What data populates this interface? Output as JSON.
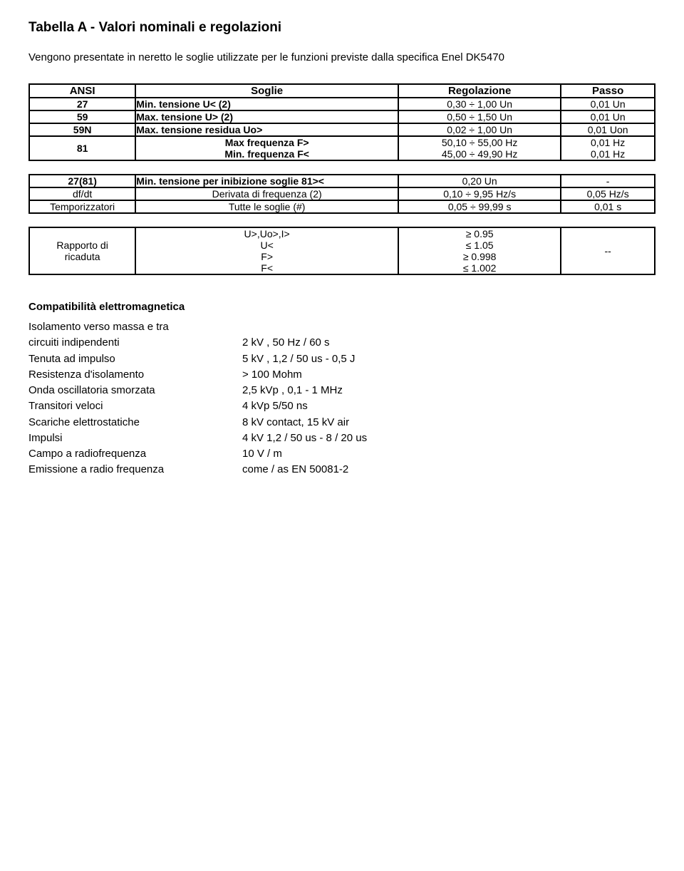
{
  "title": "Tabella A - Valori nominali e regolazioni",
  "intro": "Vengono presentate in neretto le soglie utilizzate per le funzioni previste dalla specifica Enel DK5470",
  "headers": {
    "ansi": "ANSI",
    "soglie": "Soglie",
    "regolazione": "Regolazione",
    "passo": "Passo"
  },
  "tableA": [
    {
      "ansi": "27",
      "soglie": "Min. tensione U<  (2)",
      "reg": "0,30 ÷ 1,00 Un",
      "passo": "0,01 Un"
    },
    {
      "ansi": "59",
      "soglie": "Max. tensione U>  (2)",
      "reg": "0,50 ÷ 1,50 Un",
      "passo": "0,01 Un"
    },
    {
      "ansi": "59N",
      "soglie": "Max. tensione residua Uo>",
      "reg": "0,02 ÷ 1,00 Un",
      "passo": "0,01 Uon"
    }
  ],
  "row81": {
    "ansi": "81",
    "soglie_l1": "Max frequenza F>",
    "soglie_l2": "Min. frequenza F<",
    "reg_l1": "50,10 ÷ 55,00 Hz",
    "reg_l2": "45,00 ÷ 49,90 Hz",
    "passo_l1": "0,01 Hz",
    "passo_l2": "0,01 Hz"
  },
  "tableB": [
    {
      "ansi": "27(81)",
      "soglie": "Min. tensione per inibizione soglie 81><",
      "reg": "0,20 Un",
      "passo": "-"
    },
    {
      "ansi": "df/dt",
      "soglie": "Derivata di frequenza (2)",
      "reg": "0,10 ÷ 9,95 Hz/s",
      "passo": "0,05 Hz/s"
    },
    {
      "ansi": "Temporizzatori",
      "soglie": "Tutte le soglie (#)",
      "reg": "0,05 ÷ 99,99 s",
      "passo": "0,01 s"
    }
  ],
  "ratio": {
    "ansi_l1": "Rapporto di",
    "ansi_l2": "ricaduta",
    "soglie_l1": "U>,Uo>,I>",
    "soglie_l2": "U<",
    "soglie_l3": "F>",
    "soglie_l4": "F<",
    "reg_l1": "≥ 0.95",
    "reg_l2": "≤ 1.05",
    "reg_l3": "≥ 0.998",
    "reg_l4": "≤ 1.002",
    "passo": "--"
  },
  "compat_title": "Compatibilità elettromagnetica",
  "compat": [
    {
      "k": "Isolamento verso massa e tra",
      "v": ""
    },
    {
      "k": "circuiti indipendenti",
      "v": "2 kV , 50 Hz / 60 s"
    },
    {
      "k": "Tenuta ad impulso",
      "v": "5 kV , 1,2 / 50 us - 0,5 J"
    },
    {
      "k": "Resistenza d'isolamento",
      "v": "> 100 Mohm"
    },
    {
      "k": "Onda oscillatoria smorzata",
      "v": "2,5 kVp ,   0,1 - 1 MHz"
    },
    {
      "k": "Transitori veloci",
      "v": "4 kVp  5/50 ns"
    },
    {
      "k": "Scariche elettrostatiche",
      "v": "8 kV contact, 15 kV air"
    },
    {
      "k": "Impulsi",
      "v": "4 kV 1,2 / 50 us - 8 / 20 us"
    },
    {
      "k": "Campo a radiofrequenza",
      "v": "10 V / m"
    },
    {
      "k": "Emissione a radio frequenza",
      "v": "come / as EN 50081-2"
    }
  ]
}
